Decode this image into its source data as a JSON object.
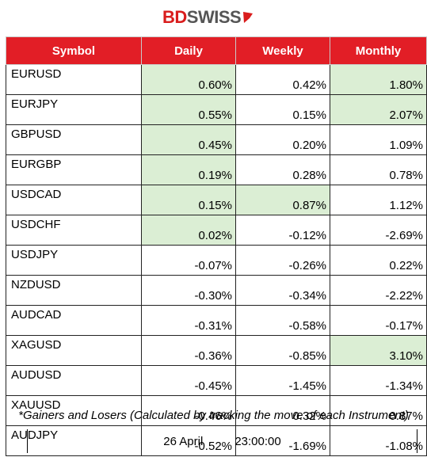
{
  "brand": {
    "part1": "BD",
    "part2": "SWISS"
  },
  "table": {
    "headers": {
      "symbol": "Symbol",
      "daily": "Daily",
      "weekly": "Weekly",
      "monthly": "Monthly"
    },
    "rows": [
      {
        "symbol": "EURUSD",
        "daily": "0.60%",
        "weekly": "0.42%",
        "monthly": "1.80%"
      },
      {
        "symbol": "EURJPY",
        "daily": "0.55%",
        "weekly": "0.15%",
        "monthly": "2.07%"
      },
      {
        "symbol": "GBPUSD",
        "daily": "0.45%",
        "weekly": "0.20%",
        "monthly": "1.09%"
      },
      {
        "symbol": "EURGBP",
        "daily": "0.19%",
        "weekly": "0.28%",
        "monthly": "0.78%"
      },
      {
        "symbol": "USDCAD",
        "daily": "0.15%",
        "weekly": "0.87%",
        "monthly": "1.12%"
      },
      {
        "symbol": "USDCHF",
        "daily": "0.02%",
        "weekly": "-0.12%",
        "monthly": "-2.69%"
      },
      {
        "symbol": "USDJPY",
        "daily": "-0.07%",
        "weekly": "-0.26%",
        "monthly": "0.22%"
      },
      {
        "symbol": "NZDUSD",
        "daily": "-0.30%",
        "weekly": "-0.34%",
        "monthly": "-2.22%"
      },
      {
        "symbol": "AUDCAD",
        "daily": "-0.31%",
        "weekly": "-0.58%",
        "monthly": "-0.17%"
      },
      {
        "symbol": "XAGUSD",
        "daily": "-0.36%",
        "weekly": "-0.85%",
        "monthly": "3.10%"
      },
      {
        "symbol": "AUDUSD",
        "daily": "-0.45%",
        "weekly": "-1.45%",
        "monthly": "-1.34%"
      },
      {
        "symbol": "XAUUSD",
        "daily": "-0.46%",
        "weekly": "0.32%",
        "monthly": "0.87%"
      },
      {
        "symbol": "AUDJPY",
        "daily": "-0.52%",
        "weekly": "-1.69%",
        "monthly": "-1.08%"
      }
    ],
    "highlighted": [
      [
        true,
        false,
        true
      ],
      [
        true,
        false,
        true
      ],
      [
        true,
        false,
        false
      ],
      [
        true,
        false,
        false
      ],
      [
        true,
        true,
        false
      ],
      [
        true,
        false,
        false
      ],
      [
        false,
        false,
        false
      ],
      [
        false,
        false,
        false
      ],
      [
        false,
        false,
        false
      ],
      [
        false,
        false,
        true
      ],
      [
        false,
        false,
        false
      ],
      [
        false,
        false,
        false
      ],
      [
        false,
        false,
        false
      ]
    ]
  },
  "colors": {
    "header_red": "#e21e26",
    "highlight_green": "#dbeed4"
  },
  "note": "*Gainers and Losers (Calculated by tracking the move of each Instrument)",
  "footer": {
    "date": "26 April",
    "time": "23:00:00"
  }
}
